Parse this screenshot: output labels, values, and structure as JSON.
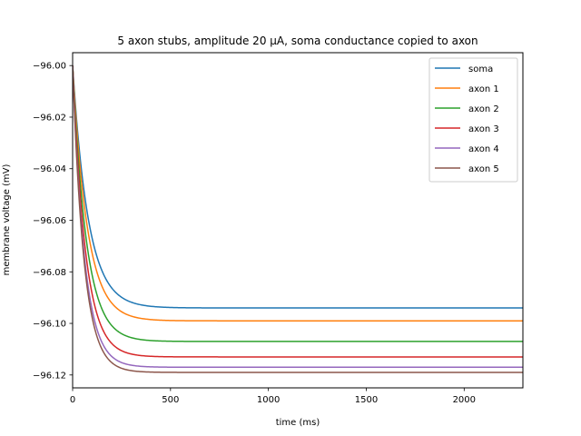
{
  "chart_data": {
    "type": "line",
    "title": "5 axon stubs, amplitude 20 µA, soma conductance copied to axon",
    "xlabel": "time (ms)",
    "ylabel": "membrane voltage (mV)",
    "xlim": [
      0,
      2300
    ],
    "ylim": [
      -96.125,
      -95.995
    ],
    "xticks": [
      0,
      500,
      1000,
      1500,
      2000
    ],
    "xtick_labels": [
      "0",
      "500",
      "1000",
      "1500",
      "2000"
    ],
    "yticks": [
      -96.12,
      -96.1,
      -96.08,
      -96.06,
      -96.04,
      -96.02,
      -96.0
    ],
    "ytick_labels": [
      "−96.12",
      "−96.10",
      "−96.08",
      "−96.06",
      "−96.04",
      "−96.02",
      "−96.00"
    ],
    "grid": false,
    "legend_position": "top-right",
    "series": [
      {
        "name": "soma",
        "color": "#1f77b4",
        "start": -96.0,
        "steady": -96.094,
        "tau": 80
      },
      {
        "name": "axon 1",
        "color": "#ff7f0e",
        "start": -96.0,
        "steady": -96.099,
        "tau": 75
      },
      {
        "name": "axon 2",
        "color": "#2ca02c",
        "start": -96.0,
        "steady": -96.107,
        "tau": 70
      },
      {
        "name": "axon 3",
        "color": "#d62728",
        "start": -96.0,
        "steady": -96.113,
        "tau": 65
      },
      {
        "name": "axon 4",
        "color": "#9467bd",
        "start": -96.0,
        "steady": -96.117,
        "tau": 60
      },
      {
        "name": "axon 5",
        "color": "#8c564b",
        "start": -96.0,
        "steady": -96.119,
        "tau": 58
      }
    ]
  }
}
